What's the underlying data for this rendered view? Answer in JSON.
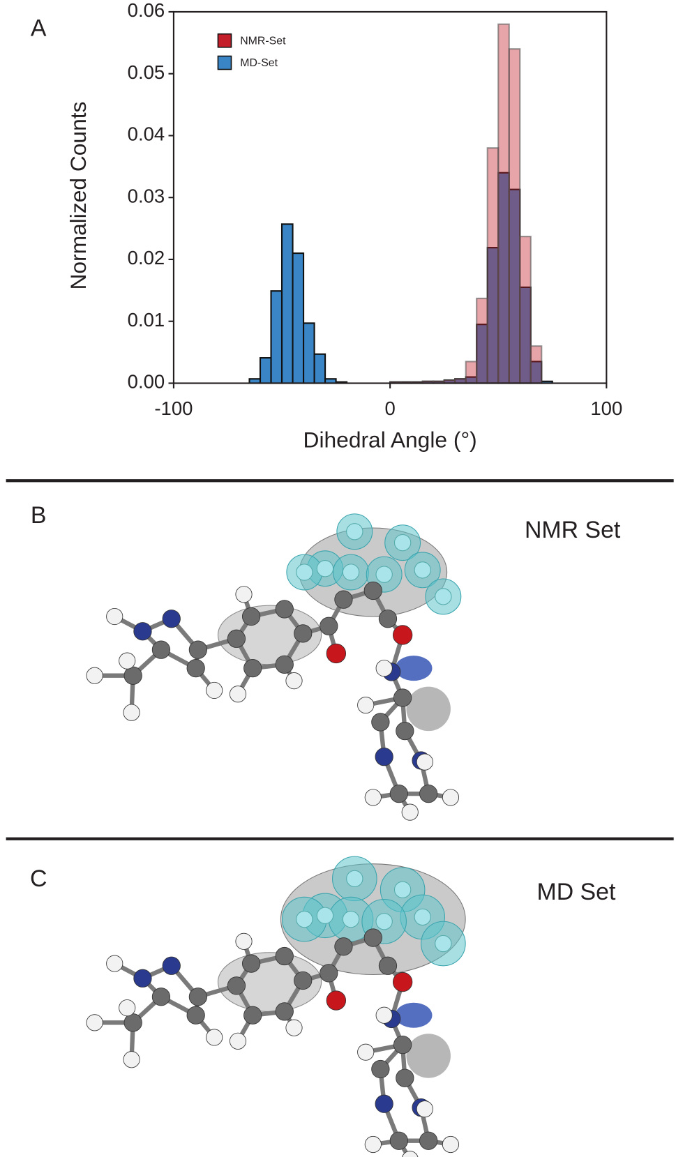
{
  "chart_data": {
    "type": "histogram",
    "panel_label": "A",
    "x_label": "Dihedral Angle (°)",
    "y_label": "Normalized Counts",
    "bins": [
      -65,
      -60,
      -55,
      -50,
      -45,
      -40,
      -35,
      -30,
      -25,
      -20,
      -15,
      -10,
      -5,
      0,
      5,
      10,
      15,
      20,
      25,
      30,
      35,
      40,
      45,
      50,
      55,
      60,
      65,
      70,
      75
    ],
    "series": [
      {
        "name": "NMR-Set",
        "color": "#c41e2a",
        "values": [
          0,
          0,
          0,
          0,
          0,
          0,
          0,
          0,
          0,
          0,
          0,
          0,
          0,
          0.0002,
          0.0002,
          0.0002,
          0.0003,
          0.0003,
          0.0005,
          0.0007,
          0.0035,
          0.0137,
          0.038,
          0.058,
          0.054,
          0.0237,
          0.006,
          0
        ]
      },
      {
        "name": "MD-Set",
        "color": "#3a85c6",
        "values": [
          0.0007,
          0.0041,
          0.0149,
          0.0257,
          0.021,
          0.0097,
          0.0047,
          0.0007,
          0.0002,
          0,
          0,
          0,
          0,
          0.0002,
          0.0002,
          0.0002,
          0.0003,
          0.0003,
          0.0005,
          0.0007,
          0.001,
          0.0095,
          0.0219,
          0.034,
          0.0313,
          0.0155,
          0.0035,
          0.0003
        ]
      }
    ],
    "xlim": [
      -100,
      100
    ],
    "xticks": [
      -100,
      0,
      100
    ],
    "ylim": [
      0,
      0.06
    ],
    "yticks": [
      {
        "value": 0,
        "label": "0.00"
      },
      0.01,
      0.02,
      0.03,
      0.04,
      0.05,
      0.06
    ],
    "legend": "upper left"
  },
  "panels": [
    {
      "label": "B",
      "title": "NMR Set"
    },
    {
      "label": "C",
      "title": "MD Set"
    }
  ]
}
